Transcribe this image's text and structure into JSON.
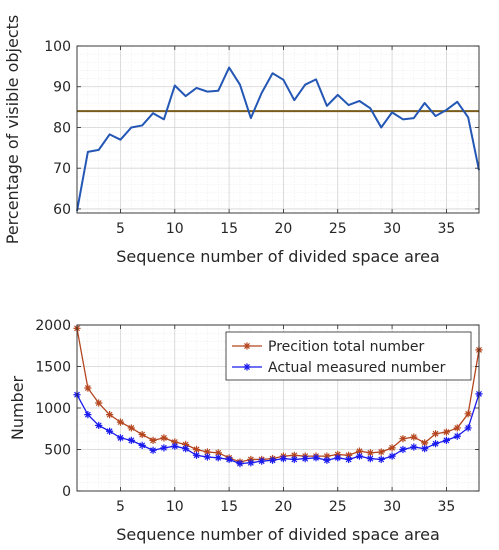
{
  "chart_data": [
    {
      "type": "line",
      "xlabel": "Sequence number of divided space area",
      "ylabel": "Percentage of visible objects",
      "xlim": [
        1,
        38
      ],
      "ylim": [
        59,
        100
      ],
      "xticks": [
        5,
        10,
        15,
        20,
        25,
        30,
        35
      ],
      "yticks": [
        60,
        70,
        80,
        90,
        100
      ],
      "grid": true,
      "x": [
        1,
        2,
        3,
        4,
        5,
        6,
        7,
        8,
        9,
        10,
        11,
        12,
        13,
        14,
        15,
        16,
        17,
        18,
        19,
        20,
        21,
        22,
        23,
        24,
        25,
        26,
        27,
        28,
        29,
        30,
        31,
        32,
        33,
        34,
        35,
        36,
        37,
        38
      ],
      "series": [
        {
          "color": "#2457b5",
          "values": [
            59.5,
            74,
            74.5,
            78.3,
            77,
            80,
            80.5,
            83.5,
            82,
            90.3,
            87.7,
            89.7,
            88.8,
            89,
            94.7,
            90.5,
            82.3,
            88.5,
            93.3,
            91.7,
            86.7,
            90.5,
            91.8,
            85.3,
            88,
            85.5,
            86.5,
            84.7,
            80,
            83.7,
            82,
            82.3,
            86,
            82.8,
            84.3,
            86.3,
            82.5,
            69.5
          ]
        }
      ],
      "reference_line": {
        "y": 84,
        "color": "#7a5c1a"
      }
    },
    {
      "type": "line",
      "xlabel": "Sequence number of divided space area",
      "ylabel": "Number",
      "xlim": [
        1,
        38
      ],
      "ylim": [
        0,
        2000
      ],
      "xticks": [
        5,
        10,
        15,
        20,
        25,
        30,
        35
      ],
      "yticks": [
        0,
        500,
        1000,
        1500,
        2000
      ],
      "grid": true,
      "legend_position": "top-right",
      "x": [
        1,
        2,
        3,
        4,
        5,
        6,
        7,
        8,
        9,
        10,
        11,
        12,
        13,
        14,
        15,
        16,
        17,
        18,
        19,
        20,
        21,
        22,
        23,
        24,
        25,
        26,
        27,
        28,
        29,
        30,
        31,
        32,
        33,
        34,
        35,
        36,
        37,
        38
      ],
      "series": [
        {
          "name": "Precition total number",
          "color": "#b5461f",
          "values": [
            1960,
            1240,
            1060,
            920,
            830,
            760,
            680,
            610,
            640,
            590,
            560,
            500,
            470,
            460,
            400,
            350,
            380,
            380,
            390,
            420,
            430,
            420,
            420,
            420,
            440,
            430,
            480,
            460,
            470,
            520,
            630,
            650,
            580,
            690,
            710,
            760,
            930,
            1700
          ]
        },
        {
          "name": "Actual measured number",
          "color": "#1a1aee",
          "values": [
            1160,
            920,
            790,
            720,
            640,
            610,
            550,
            490,
            520,
            540,
            510,
            430,
            410,
            400,
            380,
            330,
            340,
            360,
            370,
            390,
            380,
            390,
            400,
            370,
            400,
            380,
            420,
            390,
            380,
            420,
            500,
            530,
            510,
            570,
            610,
            660,
            760,
            1170
          ]
        }
      ]
    }
  ]
}
